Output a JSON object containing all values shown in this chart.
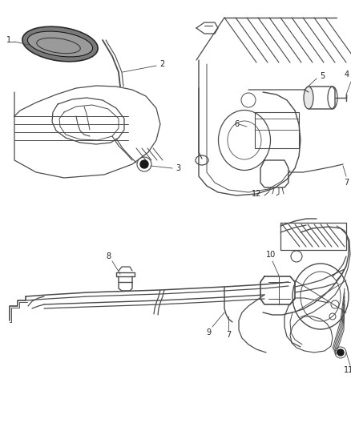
{
  "bg_color": "#ffffff",
  "lc": "#4a4a4a",
  "lc2": "#333333",
  "figsize": [
    4.38,
    5.33
  ],
  "dpi": 100,
  "label_fs": 7,
  "label_color": "#222222"
}
